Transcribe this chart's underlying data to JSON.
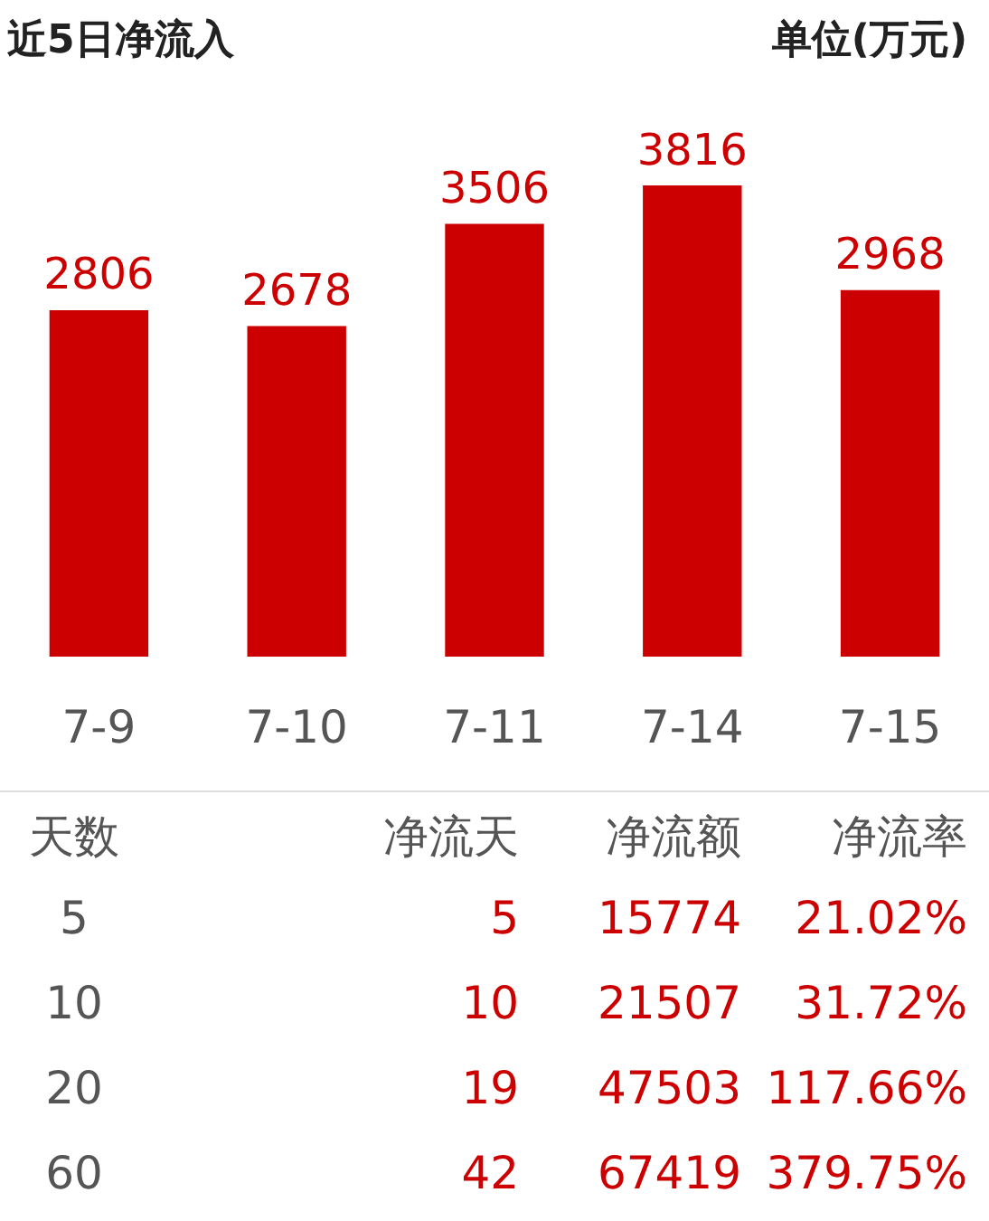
{
  "chart_data": [
    {
      "type": "bar",
      "title": "近5日净流入",
      "subtitle": "单位(万元)",
      "categories": [
        "7-9",
        "7-10",
        "7-11",
        "7-14",
        "7-15"
      ],
      "values": [
        2806,
        2678,
        3506,
        3816,
        2968
      ],
      "color": "#cc0000",
      "data_labels": true,
      "tick_labels": "x"
    },
    {
      "type": "other",
      "annotations": [
        "天数",
        "净流天",
        "净流额",
        "净流率",
        "5",
        "5",
        "15774",
        "21.02%",
        "10",
        "10",
        "21507",
        "31.72%",
        "20",
        "19",
        "47503",
        "117.66%",
        "60",
        "42",
        "67419",
        "379.75%"
      ]
    }
  ]
}
